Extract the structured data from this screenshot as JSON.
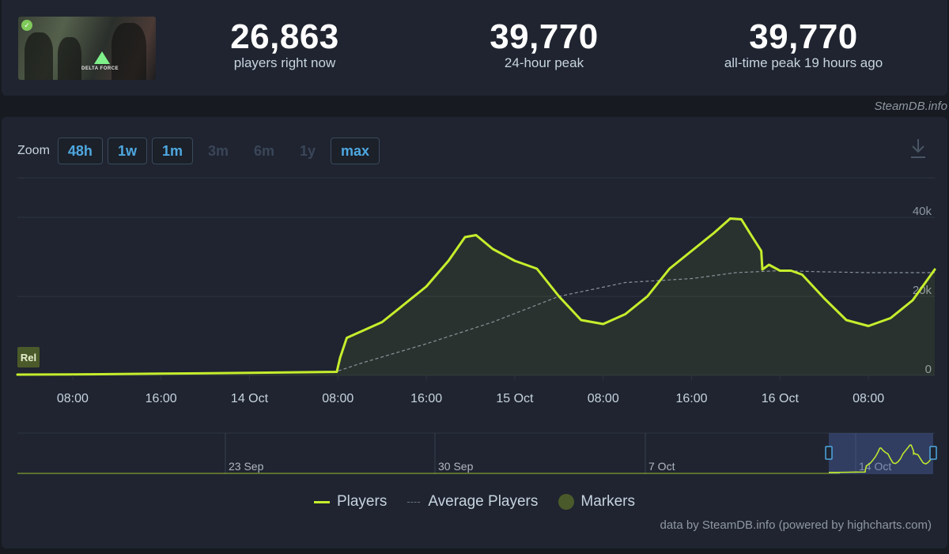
{
  "stats": {
    "current": {
      "value": "26,863",
      "label": "players right now"
    },
    "peak24": {
      "value": "39,770",
      "label": "24-hour peak"
    },
    "allTime": {
      "value": "39,770",
      "label": "all-time peak 19 hours ago"
    }
  },
  "thumbnail": {
    "logo_text": "DELTA FORCE"
  },
  "credit_top": "SteamDB.info",
  "zoom": {
    "label": "Zoom",
    "buttons": [
      {
        "label": "48h",
        "enabled": true
      },
      {
        "label": "1w",
        "enabled": true
      },
      {
        "label": "1m",
        "enabled": true
      },
      {
        "label": "3m",
        "enabled": false
      },
      {
        "label": "6m",
        "enabled": false
      },
      {
        "label": "1y",
        "enabled": false
      },
      {
        "label": "max",
        "enabled": true
      }
    ]
  },
  "legend": {
    "players": "Players",
    "average": "Average Players",
    "markers": "Markers"
  },
  "credit_bottom": "data by SteamDB.info (powered by highcharts.com)",
  "colors": {
    "players": "#c6ee2c",
    "average": "#8a929c",
    "markers": "#4b5a2a",
    "accent": "#4ea8e0"
  },
  "chart_data": {
    "type": "line",
    "x_unit": "hour since 13 Oct 00:00",
    "x_tick_labels": [
      "08:00",
      "16:00",
      "14 Oct",
      "08:00",
      "16:00",
      "15 Oct",
      "08:00",
      "16:00",
      "16 Oct",
      "08:00"
    ],
    "x_tick_hours": [
      8,
      16,
      24,
      32,
      40,
      48,
      56,
      64,
      72,
      80
    ],
    "x_range": [
      3,
      86
    ],
    "y_ticks": [
      0,
      20000,
      40000
    ],
    "y_tick_labels": [
      "0",
      "20k",
      "40k"
    ],
    "y_range": [
      0,
      50000
    ],
    "grid": true,
    "marker_label": "Rel",
    "series": [
      {
        "name": "Players",
        "x": [
          3,
          8,
          16,
          24,
          31.9,
          32.2,
          32.8,
          34,
          36,
          38,
          40,
          42,
          43.5,
          44.5,
          46,
          48,
          50,
          52,
          54,
          56,
          58,
          60,
          62,
          64,
          66,
          67.5,
          68.5,
          69.5,
          70.3,
          70.4,
          71,
          72,
          73,
          74,
          76,
          78,
          80,
          82,
          84,
          86
        ],
        "values": [
          200,
          250,
          450,
          650,
          900,
          4500,
          9500,
          11000,
          13500,
          18000,
          22500,
          29000,
          35000,
          35500,
          32000,
          29000,
          27000,
          20000,
          14000,
          13000,
          15500,
          20000,
          27000,
          31500,
          36000,
          39700,
          39500,
          35000,
          31500,
          26800,
          28000,
          26500,
          26500,
          25500,
          19500,
          14000,
          12500,
          14500,
          19000,
          26800
        ]
      },
      {
        "name": "Average Players",
        "x": [
          3,
          16,
          24,
          31.9,
          34,
          40,
          46,
          52,
          58,
          64,
          68,
          72,
          76,
          80,
          86
        ],
        "values": [
          200,
          400,
          550,
          1000,
          3000,
          8000,
          13500,
          20000,
          23500,
          24500,
          26000,
          26500,
          26200,
          26000,
          26000
        ]
      }
    ],
    "navigator": {
      "x_labels": [
        "23 Sep",
        "30 Sep",
        "7 Oct",
        "14 Oct"
      ]
    }
  }
}
